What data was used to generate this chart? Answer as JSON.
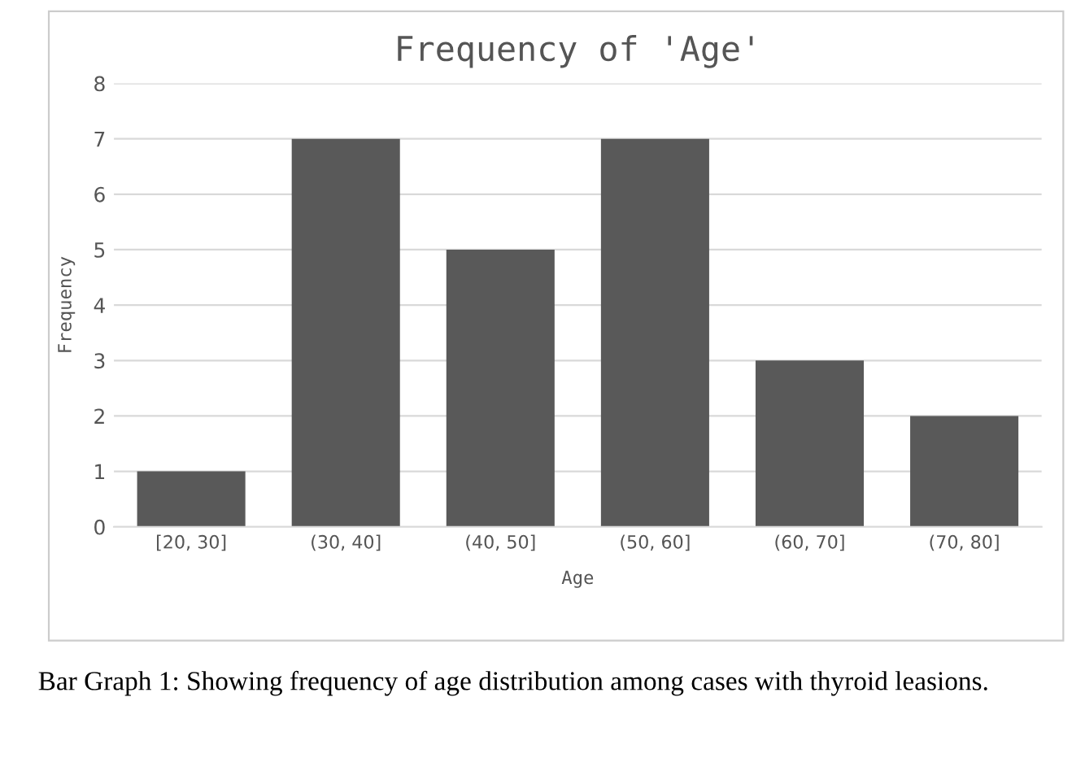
{
  "chart_data": {
    "type": "bar",
    "title": "Frequency of 'Age'",
    "xlabel": "Age",
    "ylabel": "Frequency",
    "categories": [
      "[20, 30]",
      "(30, 40]",
      "(40, 50]",
      "(50, 60]",
      "(60, 70]",
      "(70, 80]"
    ],
    "values": [
      1,
      7,
      5,
      7,
      3,
      2
    ],
    "color": "#595959",
    "ylim": [
      0,
      8
    ],
    "yticks": [
      0,
      1,
      2,
      3,
      4,
      5,
      6,
      7,
      8
    ],
    "grid": "y",
    "legend": false,
    "annotations": [
      "Bar Graph 1: Showing frequency of age distribution among cases with thyroid leasions."
    ]
  }
}
